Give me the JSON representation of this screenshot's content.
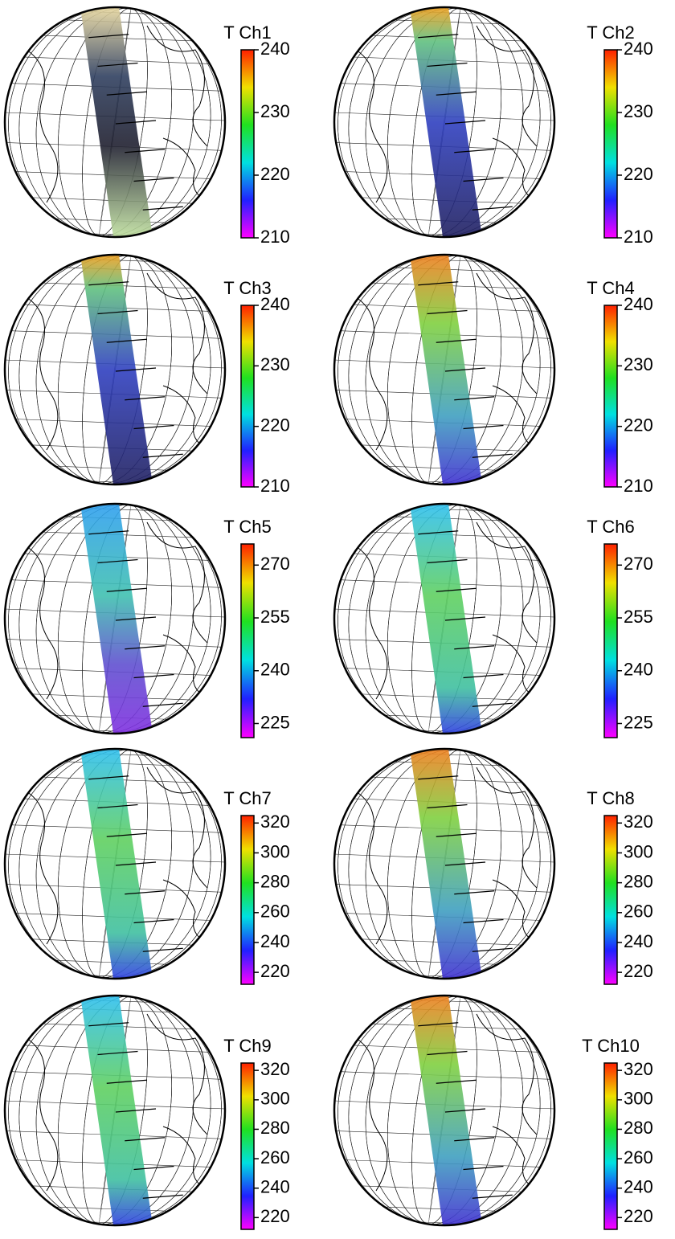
{
  "chart_data": [
    {
      "type": "map",
      "title": "T Ch1",
      "clim": [
        210,
        240
      ],
      "cticks": [
        210,
        220,
        230,
        240
      ]
    },
    {
      "type": "map",
      "title": "T Ch2",
      "clim": [
        210,
        240
      ],
      "cticks": [
        210,
        220,
        230,
        240
      ]
    },
    {
      "type": "map",
      "title": "T Ch3",
      "clim": [
        210,
        240
      ],
      "cticks": [
        210,
        220,
        230,
        240
      ]
    },
    {
      "type": "map",
      "title": "T Ch4",
      "clim": [
        210,
        240
      ],
      "cticks": [
        210,
        220,
        230,
        240
      ]
    },
    {
      "type": "map",
      "title": "T Ch5",
      "clim": [
        221,
        276
      ],
      "cticks": [
        225,
        240,
        255,
        270
      ]
    },
    {
      "type": "map",
      "title": "T Ch6",
      "clim": [
        221,
        276
      ],
      "cticks": [
        225,
        240,
        255,
        270
      ]
    },
    {
      "type": "map",
      "title": "T Ch7",
      "clim": [
        212,
        325
      ],
      "cticks": [
        220,
        240,
        260,
        280,
        300,
        320
      ]
    },
    {
      "type": "map",
      "title": "T Ch8",
      "clim": [
        212,
        325
      ],
      "cticks": [
        220,
        240,
        260,
        280,
        300,
        320
      ]
    },
    {
      "type": "map",
      "title": "T Ch9",
      "clim": [
        212,
        325
      ],
      "cticks": [
        220,
        240,
        260,
        280,
        300,
        320
      ]
    },
    {
      "type": "map",
      "title": "T Ch10",
      "clim": [
        212,
        325
      ],
      "cticks": [
        220,
        240,
        260,
        280,
        300,
        320
      ]
    }
  ]
}
